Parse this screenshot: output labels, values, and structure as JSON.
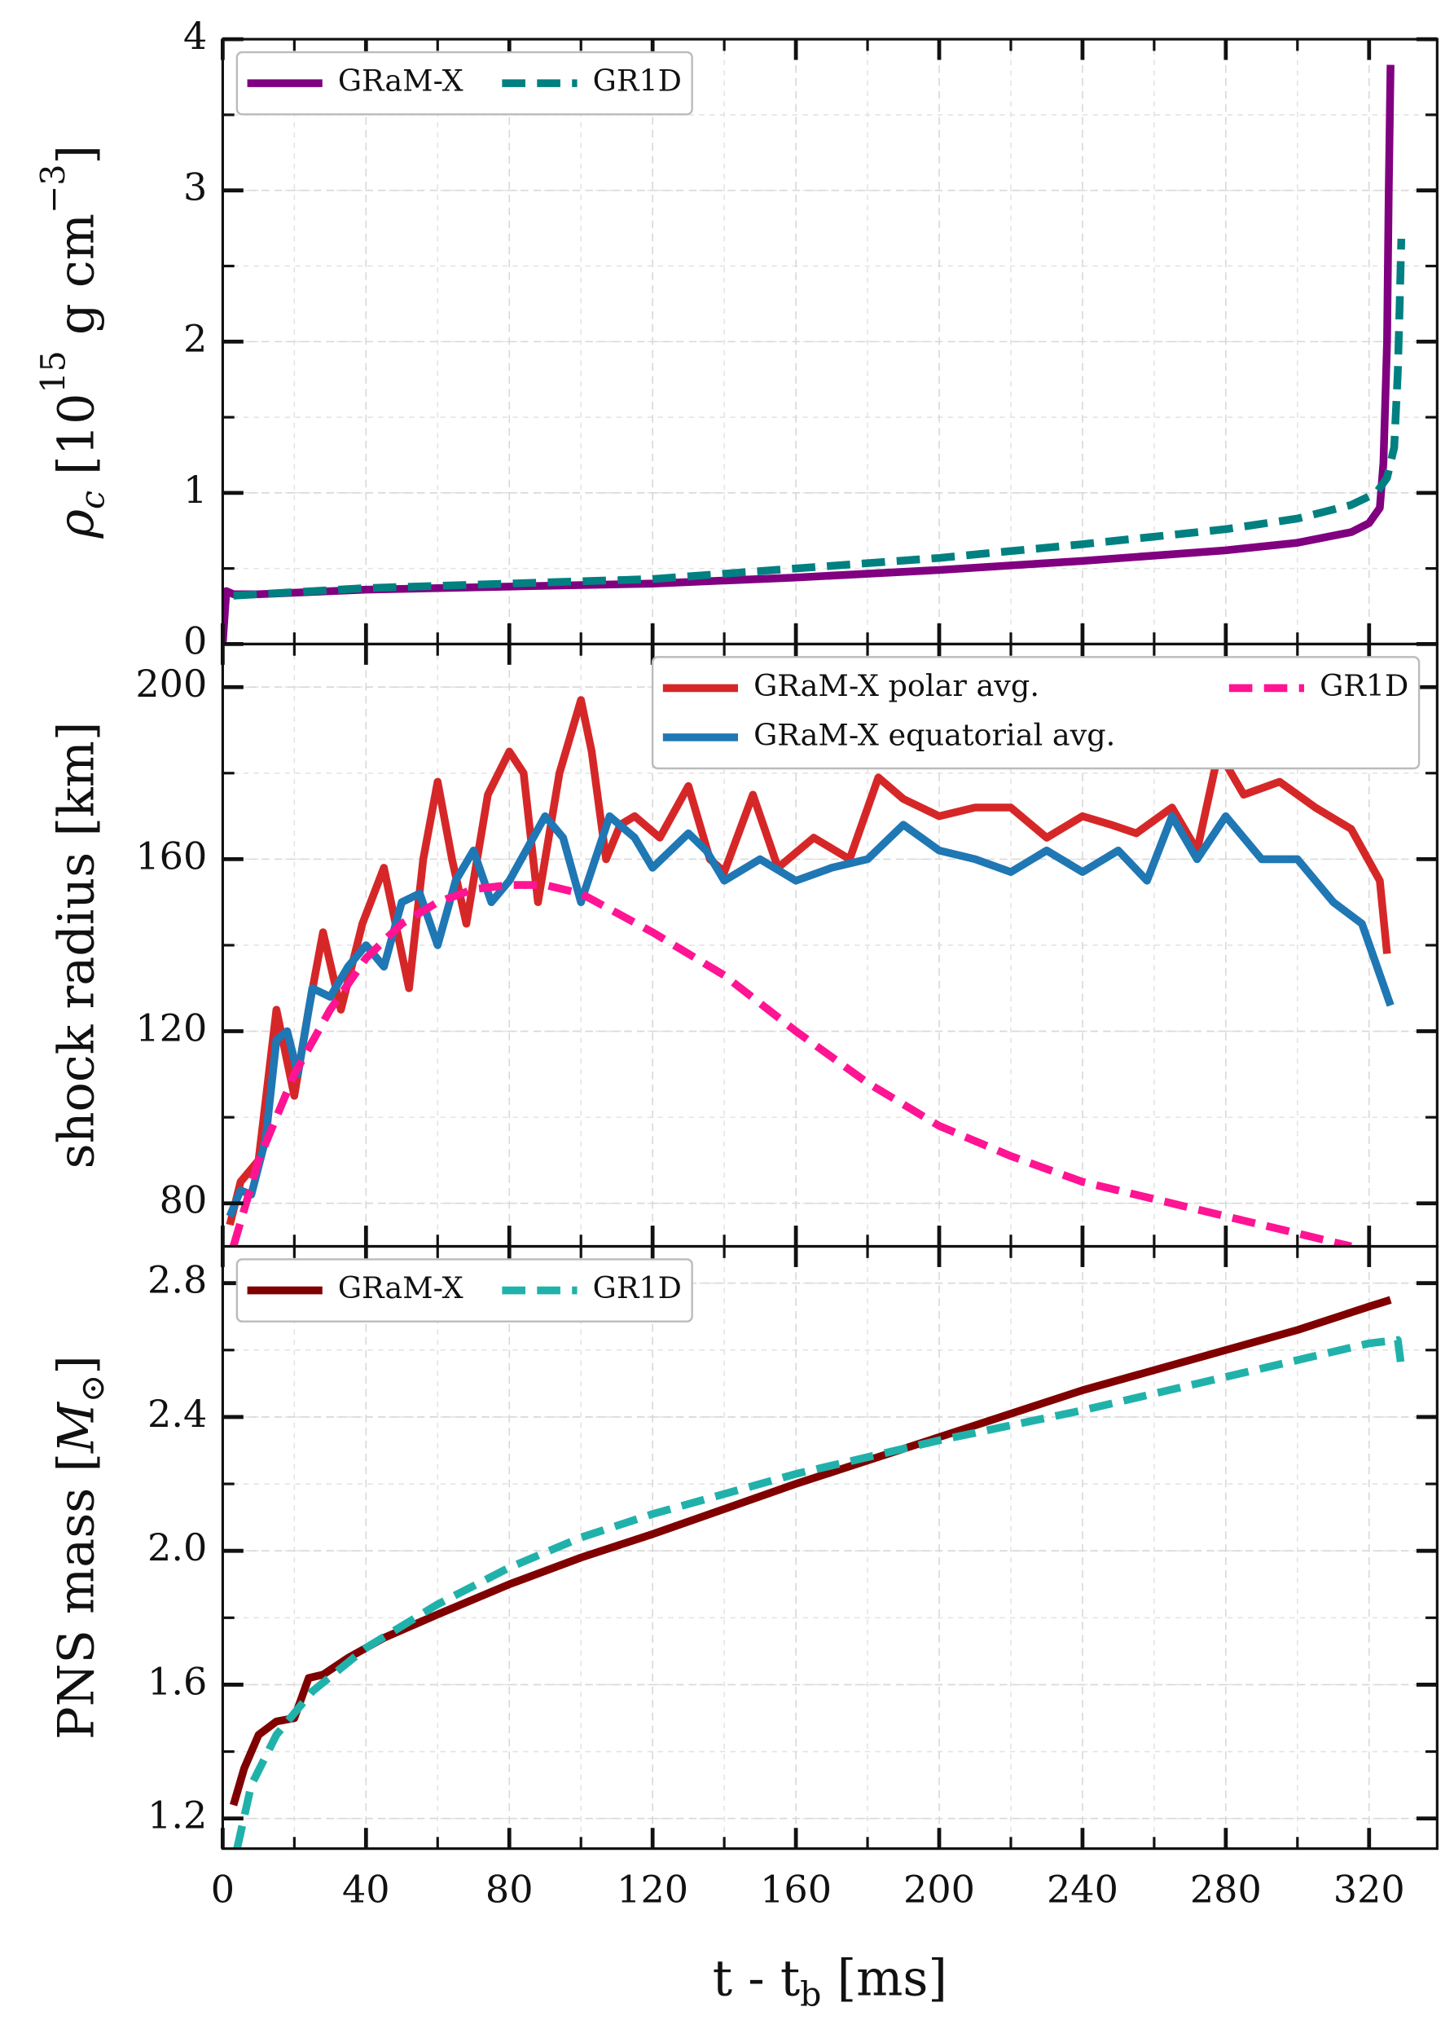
{
  "chart_data": [
    {
      "type": "line",
      "ylabel": [
        {
          "text": "ρ",
          "style": "italic"
        },
        {
          "text": "c",
          "script": "sub",
          "style": "italic"
        },
        {
          "text": " [10"
        },
        {
          "text": "15",
          "script": "sup"
        },
        {
          "text": " g cm"
        },
        {
          "text": "−3",
          "script": "sup"
        },
        {
          "text": "]"
        }
      ],
      "ylim": [
        0,
        4
      ],
      "yticks": [
        0,
        1,
        2,
        3,
        4
      ],
      "grid": true,
      "legend": {
        "loc": "upper left",
        "ncol": 2
      },
      "series": [
        {
          "name": "GRaM-X",
          "color": "#800080",
          "linestyle": "solid",
          "x": [
            0,
            1,
            3,
            10,
            40,
            80,
            120,
            160,
            200,
            240,
            280,
            300,
            315,
            320,
            323,
            324,
            325,
            325.5,
            326
          ],
          "values": [
            0,
            0.35,
            0.33,
            0.33,
            0.36,
            0.38,
            0.4,
            0.44,
            0.49,
            0.55,
            0.62,
            0.67,
            0.74,
            0.8,
            0.9,
            1.2,
            2.0,
            3.0,
            3.83
          ]
        },
        {
          "name": "GR1D",
          "color": "#008080",
          "linestyle": "dashed",
          "x": [
            3,
            40,
            80,
            120,
            160,
            200,
            240,
            280,
            300,
            315,
            322,
            325,
            327,
            328,
            328.5,
            329
          ],
          "values": [
            0.32,
            0.37,
            0.4,
            0.43,
            0.5,
            0.57,
            0.66,
            0.76,
            0.83,
            0.92,
            1.0,
            1.1,
            1.3,
            1.8,
            2.2,
            2.68
          ]
        }
      ]
    },
    {
      "type": "line",
      "ylabel": [
        {
          "text": "shock radius [km]"
        }
      ],
      "ylim": [
        70,
        210
      ],
      "yticks": [
        80,
        120,
        160,
        200
      ],
      "grid": true,
      "legend": {
        "loc": "upper right",
        "ncol": 2
      },
      "series": [
        {
          "name": "GRaM-X polar avg.",
          "color": "#d62728",
          "linestyle": "solid",
          "x": [
            2,
            5,
            10,
            15,
            20,
            24,
            28,
            33,
            39,
            45,
            52,
            56,
            60,
            64,
            68,
            74,
            80,
            84,
            88,
            94,
            100,
            103,
            107,
            111,
            115,
            122,
            130,
            136,
            140,
            148,
            155,
            165,
            175,
            183,
            190,
            200,
            210,
            220,
            230,
            240,
            248,
            255,
            265,
            272,
            278,
            285,
            295,
            305,
            315,
            323,
            325
          ],
          "values": [
            75,
            85,
            90,
            125,
            105,
            125,
            143,
            125,
            145,
            158,
            130,
            160,
            178,
            160,
            145,
            175,
            185,
            180,
            150,
            180,
            197,
            185,
            160,
            168,
            170,
            165,
            177,
            160,
            157,
            175,
            158,
            165,
            160,
            179,
            174,
            170,
            172,
            172,
            165,
            170,
            168,
            166,
            172,
            162,
            185,
            175,
            178,
            172,
            167,
            155,
            138
          ]
        },
        {
          "name": "GRaM-X equatorial avg.",
          "color": "#1f77b4",
          "linestyle": "solid",
          "x": [
            2,
            5,
            8,
            12,
            15,
            18,
            21,
            25,
            30,
            35,
            40,
            45,
            50,
            55,
            60,
            65,
            70,
            75,
            80,
            90,
            95,
            100,
            108,
            115,
            120,
            130,
            135,
            140,
            150,
            160,
            170,
            180,
            190,
            200,
            210,
            220,
            230,
            240,
            250,
            258,
            265,
            272,
            280,
            290,
            300,
            310,
            318,
            326
          ],
          "values": [
            77,
            83,
            82,
            95,
            118,
            120,
            110,
            130,
            128,
            135,
            140,
            135,
            150,
            152,
            140,
            155,
            162,
            150,
            155,
            170,
            165,
            150,
            170,
            165,
            158,
            166,
            162,
            155,
            160,
            155,
            158,
            160,
            168,
            162,
            160,
            157,
            162,
            157,
            162,
            155,
            170,
            160,
            170,
            160,
            160,
            150,
            145,
            126
          ]
        },
        {
          "name": "GR1D",
          "color": "#ff1493",
          "linestyle": "dashed",
          "x": [
            3,
            10,
            20,
            30,
            40,
            50,
            60,
            70,
            80,
            90,
            100,
            120,
            140,
            160,
            180,
            200,
            220,
            240,
            260,
            280,
            300,
            310,
            315
          ],
          "values": [
            70,
            90,
            110,
            125,
            137,
            145,
            150,
            153,
            154,
            154,
            152,
            143,
            133,
            120,
            108,
            98,
            91,
            85,
            81,
            77,
            73,
            71,
            70
          ]
        }
      ]
    },
    {
      "type": "line",
      "xlabel": [
        {
          "text": "t - t"
        },
        {
          "text": "b",
          "script": "sub"
        },
        {
          "text": " [ms]"
        }
      ],
      "ylabel": [
        {
          "text": "PNS mass ["
        },
        {
          "text": "M",
          "style": "italic"
        },
        {
          "text": "⊙",
          "script": "sub"
        },
        {
          "text": "]"
        }
      ],
      "xlim": [
        0,
        339
      ],
      "xticks": [
        0,
        40,
        80,
        120,
        160,
        200,
        240,
        280,
        320
      ],
      "ylim": [
        1.11,
        2.91
      ],
      "yticks": [
        {
          "value": 1.2,
          "label": "1.2"
        },
        {
          "value": 1.6,
          "label": "1.6"
        },
        {
          "value": 2.0,
          "label": "2.0"
        },
        {
          "value": 2.4,
          "label": "2.4"
        },
        {
          "value": 2.8,
          "label": "2.8"
        }
      ],
      "grid": true,
      "legend": {
        "loc": "upper left",
        "ncol": 2
      },
      "series": [
        {
          "name": "GRaM-X",
          "color": "#800000",
          "linestyle": "solid",
          "x": [
            3,
            6,
            10,
            15,
            20,
            24,
            28,
            35,
            45,
            60,
            80,
            100,
            120,
            160,
            200,
            240,
            280,
            300,
            320,
            326
          ],
          "values": [
            1.24,
            1.35,
            1.45,
            1.49,
            1.5,
            1.62,
            1.63,
            1.68,
            1.74,
            1.81,
            1.9,
            1.98,
            2.05,
            2.2,
            2.34,
            2.48,
            2.6,
            2.66,
            2.73,
            2.75
          ]
        },
        {
          "name": "GR1D",
          "color": "#20b2aa",
          "linestyle": "dashed",
          "x": [
            4,
            8,
            15,
            25,
            40,
            60,
            80,
            100,
            120,
            160,
            200,
            240,
            280,
            320,
            328,
            329
          ],
          "values": [
            1.11,
            1.3,
            1.45,
            1.58,
            1.71,
            1.84,
            1.95,
            2.04,
            2.11,
            2.23,
            2.33,
            2.42,
            2.52,
            2.62,
            2.63,
            2.55
          ]
        }
      ]
    }
  ]
}
